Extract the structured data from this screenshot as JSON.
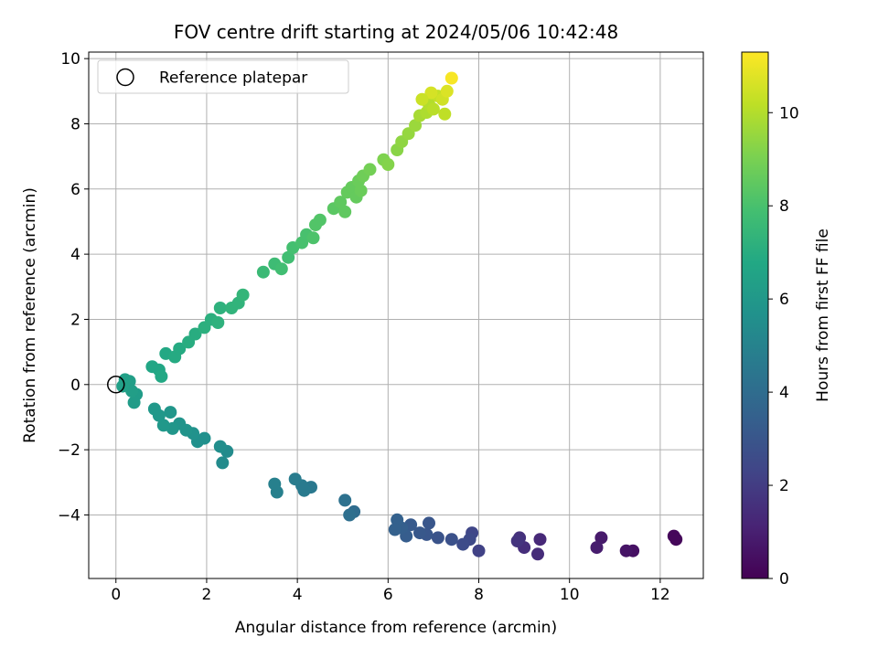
{
  "chart_data": {
    "type": "scatter",
    "title": "FOV centre drift starting at 2024/05/06 10:42:48",
    "xlabel": "Angular distance from reference (arcmin)",
    "ylabel": "Rotation from reference (arcmin)",
    "xlim": [
      -0.6,
      12.95
    ],
    "ylim": [
      -5.95,
      10.2
    ],
    "xticks": [
      0,
      2,
      4,
      6,
      8,
      10,
      12
    ],
    "yticks": [
      -4,
      -2,
      0,
      2,
      4,
      6,
      8,
      10
    ],
    "grid": true,
    "legend": {
      "position": "top-left",
      "entries": [
        "Reference platepar"
      ]
    },
    "reference_point": {
      "x": 0,
      "y": 0
    },
    "colorbar": {
      "label": "Hours from first FF file",
      "range": [
        0,
        11.3
      ],
      "ticks": [
        0,
        2,
        4,
        6,
        8,
        10
      ],
      "colormap": "viridis"
    },
    "series": [
      {
        "points": [
          {
            "x": 12.3,
            "y": -4.65,
            "c": 0.2
          },
          {
            "x": 12.35,
            "y": -4.75,
            "c": 0.2
          },
          {
            "x": 11.4,
            "y": -5.1,
            "c": 0.5
          },
          {
            "x": 11.25,
            "y": -5.1,
            "c": 0.6
          },
          {
            "x": 10.7,
            "y": -4.7,
            "c": 0.8
          },
          {
            "x": 10.6,
            "y": -5.0,
            "c": 0.9
          },
          {
            "x": 9.35,
            "y": -4.75,
            "c": 1.3
          },
          {
            "x": 9.3,
            "y": -5.2,
            "c": 1.4
          },
          {
            "x": 9.0,
            "y": -5.0,
            "c": 1.5
          },
          {
            "x": 8.9,
            "y": -4.7,
            "c": 1.6
          },
          {
            "x": 8.85,
            "y": -4.8,
            "c": 1.7
          },
          {
            "x": 8.0,
            "y": -5.1,
            "c": 2.2
          },
          {
            "x": 7.85,
            "y": -4.55,
            "c": 2.4
          },
          {
            "x": 7.8,
            "y": -4.75,
            "c": 2.5
          },
          {
            "x": 7.65,
            "y": -4.9,
            "c": 2.6
          },
          {
            "x": 7.4,
            "y": -4.75,
            "c": 2.8
          },
          {
            "x": 7.1,
            "y": -4.7,
            "c": 2.9
          },
          {
            "x": 6.9,
            "y": -4.25,
            "c": 3.0
          },
          {
            "x": 6.85,
            "y": -4.6,
            "c": 3.0
          },
          {
            "x": 6.7,
            "y": -4.55,
            "c": 3.1
          },
          {
            "x": 6.5,
            "y": -4.3,
            "c": 3.2
          },
          {
            "x": 6.4,
            "y": -4.65,
            "c": 3.3
          },
          {
            "x": 6.3,
            "y": -4.4,
            "c": 3.4
          },
          {
            "x": 6.2,
            "y": -4.15,
            "c": 3.5
          },
          {
            "x": 6.15,
            "y": -4.45,
            "c": 3.5
          },
          {
            "x": 5.25,
            "y": -3.9,
            "c": 4.0
          },
          {
            "x": 5.15,
            "y": -4.0,
            "c": 4.1
          },
          {
            "x": 5.05,
            "y": -3.55,
            "c": 4.2
          },
          {
            "x": 4.3,
            "y": -3.15,
            "c": 4.5
          },
          {
            "x": 4.15,
            "y": -3.25,
            "c": 4.6
          },
          {
            "x": 4.1,
            "y": -3.1,
            "c": 4.6
          },
          {
            "x": 3.95,
            "y": -2.9,
            "c": 4.7
          },
          {
            "x": 3.55,
            "y": -3.3,
            "c": 4.9
          },
          {
            "x": 3.5,
            "y": -3.05,
            "c": 4.9
          },
          {
            "x": 2.45,
            "y": -2.05,
            "c": 5.4
          },
          {
            "x": 2.35,
            "y": -2.4,
            "c": 5.4
          },
          {
            "x": 2.3,
            "y": -1.9,
            "c": 5.5
          },
          {
            "x": 1.95,
            "y": -1.65,
            "c": 5.6
          },
          {
            "x": 1.8,
            "y": -1.75,
            "c": 5.6
          },
          {
            "x": 1.7,
            "y": -1.5,
            "c": 5.7
          },
          {
            "x": 1.55,
            "y": -1.4,
            "c": 5.8
          },
          {
            "x": 1.4,
            "y": -1.2,
            "c": 5.8
          },
          {
            "x": 1.25,
            "y": -1.35,
            "c": 5.9
          },
          {
            "x": 1.2,
            "y": -0.85,
            "c": 5.9
          },
          {
            "x": 1.05,
            "y": -1.25,
            "c": 6.0
          },
          {
            "x": 0.95,
            "y": -0.95,
            "c": 6.0
          },
          {
            "x": 0.85,
            "y": -0.75,
            "c": 6.0
          },
          {
            "x": 0.45,
            "y": -0.3,
            "c": 6.2
          },
          {
            "x": 0.4,
            "y": -0.55,
            "c": 6.2
          },
          {
            "x": 0.35,
            "y": -0.2,
            "c": 6.3
          },
          {
            "x": 0.3,
            "y": 0.1,
            "c": 6.3
          },
          {
            "x": 0.2,
            "y": 0.15,
            "c": 6.4
          },
          {
            "x": 0.15,
            "y": -0.05,
            "c": 6.4
          },
          {
            "x": 0.8,
            "y": 0.55,
            "c": 6.7
          },
          {
            "x": 0.95,
            "y": 0.45,
            "c": 6.7
          },
          {
            "x": 1.0,
            "y": 0.25,
            "c": 6.8
          },
          {
            "x": 1.1,
            "y": 0.95,
            "c": 6.8
          },
          {
            "x": 1.3,
            "y": 0.85,
            "c": 6.9
          },
          {
            "x": 1.4,
            "y": 1.1,
            "c": 6.9
          },
          {
            "x": 1.6,
            "y": 1.3,
            "c": 7.0
          },
          {
            "x": 1.75,
            "y": 1.55,
            "c": 7.0
          },
          {
            "x": 1.95,
            "y": 1.75,
            "c": 7.1
          },
          {
            "x": 2.1,
            "y": 2.0,
            "c": 7.1
          },
          {
            "x": 2.25,
            "y": 1.9,
            "c": 7.2
          },
          {
            "x": 2.3,
            "y": 2.35,
            "c": 7.2
          },
          {
            "x": 2.55,
            "y": 2.35,
            "c": 7.3
          },
          {
            "x": 2.7,
            "y": 2.5,
            "c": 7.3
          },
          {
            "x": 2.8,
            "y": 2.75,
            "c": 7.4
          },
          {
            "x": 3.25,
            "y": 3.45,
            "c": 7.6
          },
          {
            "x": 3.5,
            "y": 3.7,
            "c": 7.7
          },
          {
            "x": 3.65,
            "y": 3.55,
            "c": 7.8
          },
          {
            "x": 3.8,
            "y": 3.9,
            "c": 7.8
          },
          {
            "x": 3.9,
            "y": 4.2,
            "c": 7.9
          },
          {
            "x": 4.1,
            "y": 4.35,
            "c": 8.0
          },
          {
            "x": 4.2,
            "y": 4.6,
            "c": 8.0
          },
          {
            "x": 4.35,
            "y": 4.5,
            "c": 8.1
          },
          {
            "x": 4.4,
            "y": 4.9,
            "c": 8.2
          },
          {
            "x": 4.5,
            "y": 5.05,
            "c": 8.2
          },
          {
            "x": 4.8,
            "y": 5.4,
            "c": 8.4
          },
          {
            "x": 4.95,
            "y": 5.6,
            "c": 8.5
          },
          {
            "x": 5.1,
            "y": 5.9,
            "c": 8.6
          },
          {
            "x": 5.2,
            "y": 6.05,
            "c": 8.6
          },
          {
            "x": 5.35,
            "y": 6.25,
            "c": 8.7
          },
          {
            "x": 5.45,
            "y": 6.4,
            "c": 8.8
          },
          {
            "x": 5.6,
            "y": 6.6,
            "c": 8.9
          },
          {
            "x": 5.3,
            "y": 5.75,
            "c": 8.6
          },
          {
            "x": 5.4,
            "y": 5.95,
            "c": 8.7
          },
          {
            "x": 5.05,
            "y": 5.3,
            "c": 8.5
          },
          {
            "x": 5.9,
            "y": 6.9,
            "c": 9.1
          },
          {
            "x": 6.0,
            "y": 6.75,
            "c": 9.2
          },
          {
            "x": 6.2,
            "y": 7.2,
            "c": 9.3
          },
          {
            "x": 6.3,
            "y": 7.45,
            "c": 9.4
          },
          {
            "x": 6.45,
            "y": 7.7,
            "c": 9.5
          },
          {
            "x": 6.6,
            "y": 7.95,
            "c": 9.6
          },
          {
            "x": 6.7,
            "y": 8.25,
            "c": 9.8
          },
          {
            "x": 6.85,
            "y": 8.35,
            "c": 9.9
          },
          {
            "x": 6.9,
            "y": 8.6,
            "c": 10.0
          },
          {
            "x": 7.0,
            "y": 8.45,
            "c": 10.1
          },
          {
            "x": 7.1,
            "y": 8.85,
            "c": 10.3
          },
          {
            "x": 7.2,
            "y": 8.75,
            "c": 10.5
          },
          {
            "x": 7.3,
            "y": 9.0,
            "c": 10.7
          },
          {
            "x": 6.95,
            "y": 8.95,
            "c": 10.6
          },
          {
            "x": 7.4,
            "y": 9.4,
            "c": 11.2
          },
          {
            "x": 7.25,
            "y": 8.3,
            "c": 10.2
          },
          {
            "x": 6.75,
            "y": 8.75,
            "c": 10.4
          }
        ]
      }
    ]
  }
}
